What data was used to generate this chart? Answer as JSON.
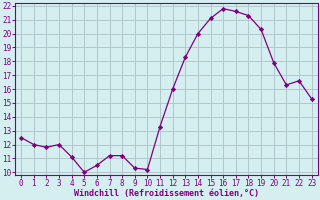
{
  "x": [
    0,
    1,
    2,
    3,
    4,
    5,
    6,
    7,
    8,
    9,
    10,
    11,
    12,
    13,
    14,
    15,
    16,
    17,
    18,
    19,
    20,
    21,
    22,
    23
  ],
  "y": [
    12.5,
    12.0,
    11.8,
    12.0,
    11.1,
    10.0,
    10.5,
    11.2,
    11.2,
    10.3,
    10.2,
    13.3,
    16.0,
    18.3,
    20.0,
    21.1,
    21.8,
    21.6,
    21.3,
    20.3,
    17.9,
    16.3,
    16.6,
    15.3
  ],
  "line_color": "#800080",
  "marker": "D",
  "marker_size": 2.2,
  "background_color": "#d5eef0",
  "grid_color": "#b0c8cc",
  "xlabel": "Windchill (Refroidissement éolien,°C)",
  "xlabel_color": "#800080",
  "tick_color": "#800080",
  "spine_color": "#800080",
  "ylim": [
    9.8,
    22.2
  ],
  "xlim": [
    -0.5,
    23.5
  ],
  "yticks": [
    10,
    11,
    12,
    13,
    14,
    15,
    16,
    17,
    18,
    19,
    20,
    21,
    22
  ],
  "xticks": [
    0,
    1,
    2,
    3,
    4,
    5,
    6,
    7,
    8,
    9,
    10,
    11,
    12,
    13,
    14,
    15,
    16,
    17,
    18,
    19,
    20,
    21,
    22,
    23
  ],
  "tick_fontsize": 5.5,
  "xlabel_fontsize": 6.0
}
